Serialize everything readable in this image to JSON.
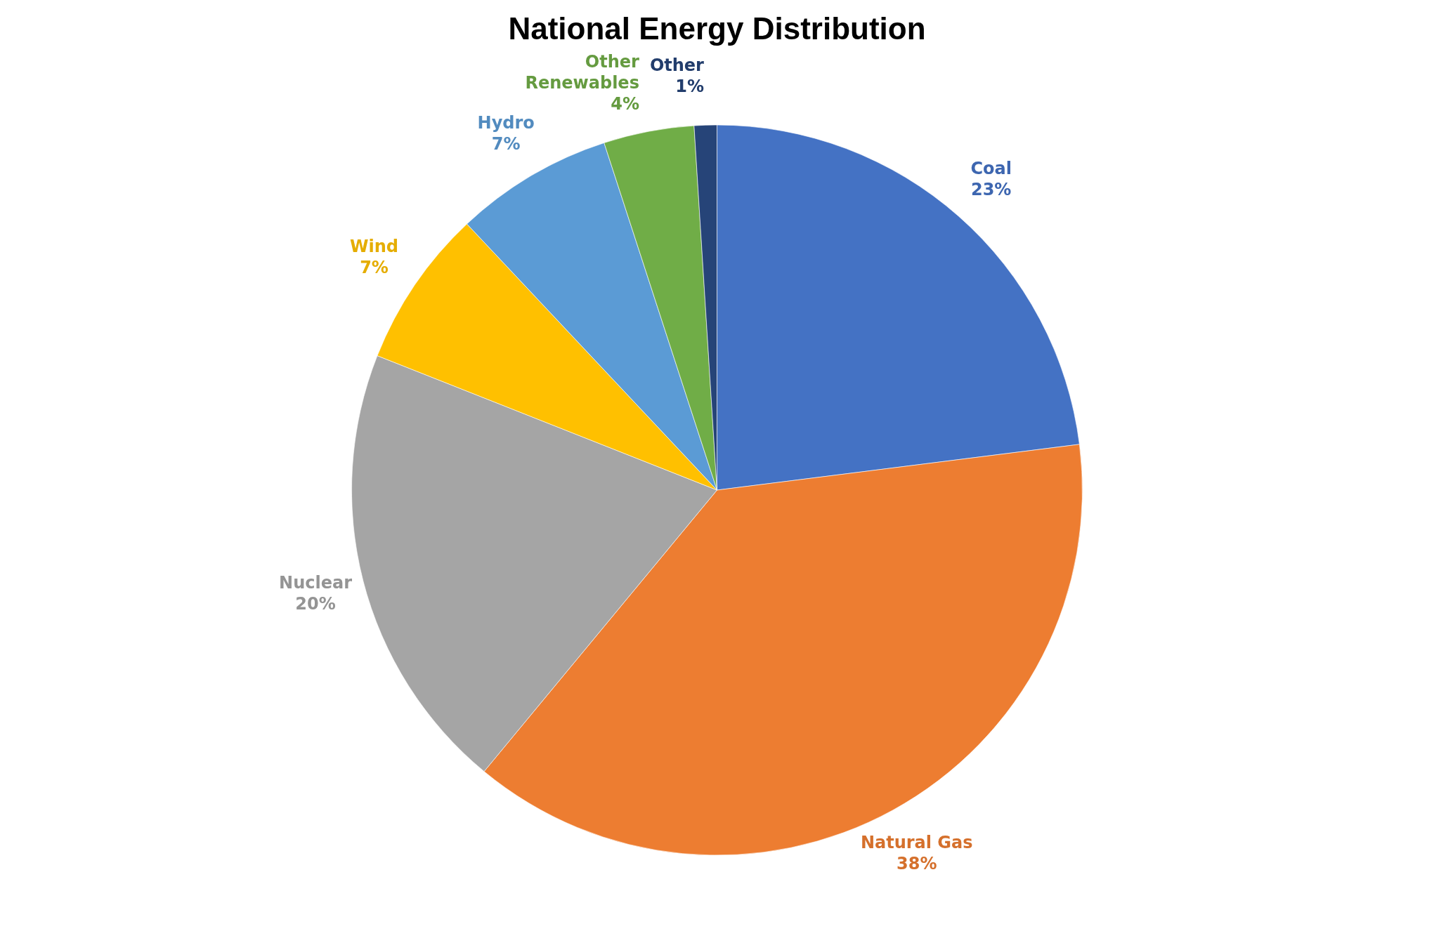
{
  "chart_data": {
    "type": "pie",
    "title": "National Energy Distribution",
    "categories": [
      "Coal",
      "Natural Gas",
      "Nuclear",
      "Wind",
      "Hydro",
      "Other Renewables",
      "Other"
    ],
    "values": [
      23,
      38,
      20,
      7,
      7,
      4,
      1
    ],
    "colors": [
      "#4472c4",
      "#ed7d31",
      "#a5a5a5",
      "#ffc000",
      "#5b9bd5",
      "#70ad47",
      "#264478"
    ],
    "value_labels": [
      "23%",
      "38%",
      "20%",
      "7%",
      "7%",
      "4%",
      "1%"
    ]
  }
}
